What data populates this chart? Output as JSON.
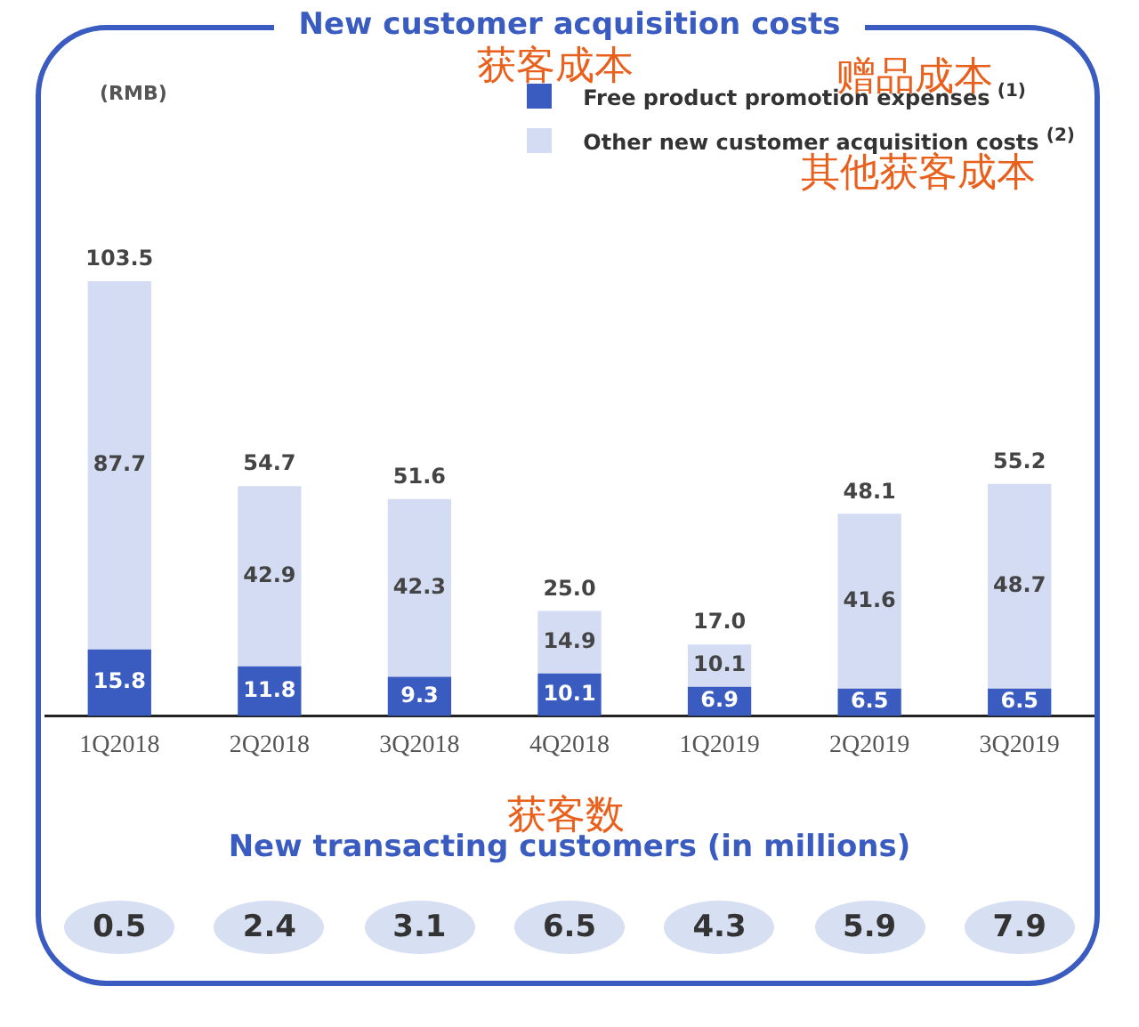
{
  "chart_data": [
    {
      "type": "bar",
      "title": "New customer acquisition costs",
      "ylabel": "(RMB)",
      "stacked": true,
      "categories": [
        "1Q2018",
        "2Q2018",
        "3Q2018",
        "4Q2018",
        "1Q2019",
        "2Q2019",
        "3Q2019"
      ],
      "series": [
        {
          "name": "Free product promotion expenses $^{(1)}$",
          "color": "#3a5bbf",
          "values": [
            15.8,
            11.8,
            9.3,
            10.1,
            6.9,
            6.5,
            6.5
          ]
        },
        {
          "name": "Other new customer acquisition costs $^{(2)}$",
          "color": "#d3dcf2",
          "values": [
            87.7,
            42.9,
            42.3,
            14.9,
            10.1,
            41.6,
            48.7
          ]
        }
      ],
      "totals": [
        "103.5",
        "54.7",
        "51.6",
        "25.0",
        "17.0",
        "48.1",
        "55.2"
      ],
      "data_labels": true,
      "grid": false,
      "legend": "top right",
      "tick_labels": "x",
      "annotations": [
        "获客成本",
        "赠品成本",
        "其他获客成本"
      ]
    },
    {
      "type": "other",
      "title": "New transacting customers (in millions)",
      "categories": [
        null,
        null,
        null,
        null,
        null,
        null,
        null
      ],
      "values": [
        0.5,
        2.4,
        3.1,
        6.5,
        4.3,
        5.9,
        7.9
      ],
      "data_labels": true,
      "annotations": [
        "获客数"
      ]
    }
  ]
}
